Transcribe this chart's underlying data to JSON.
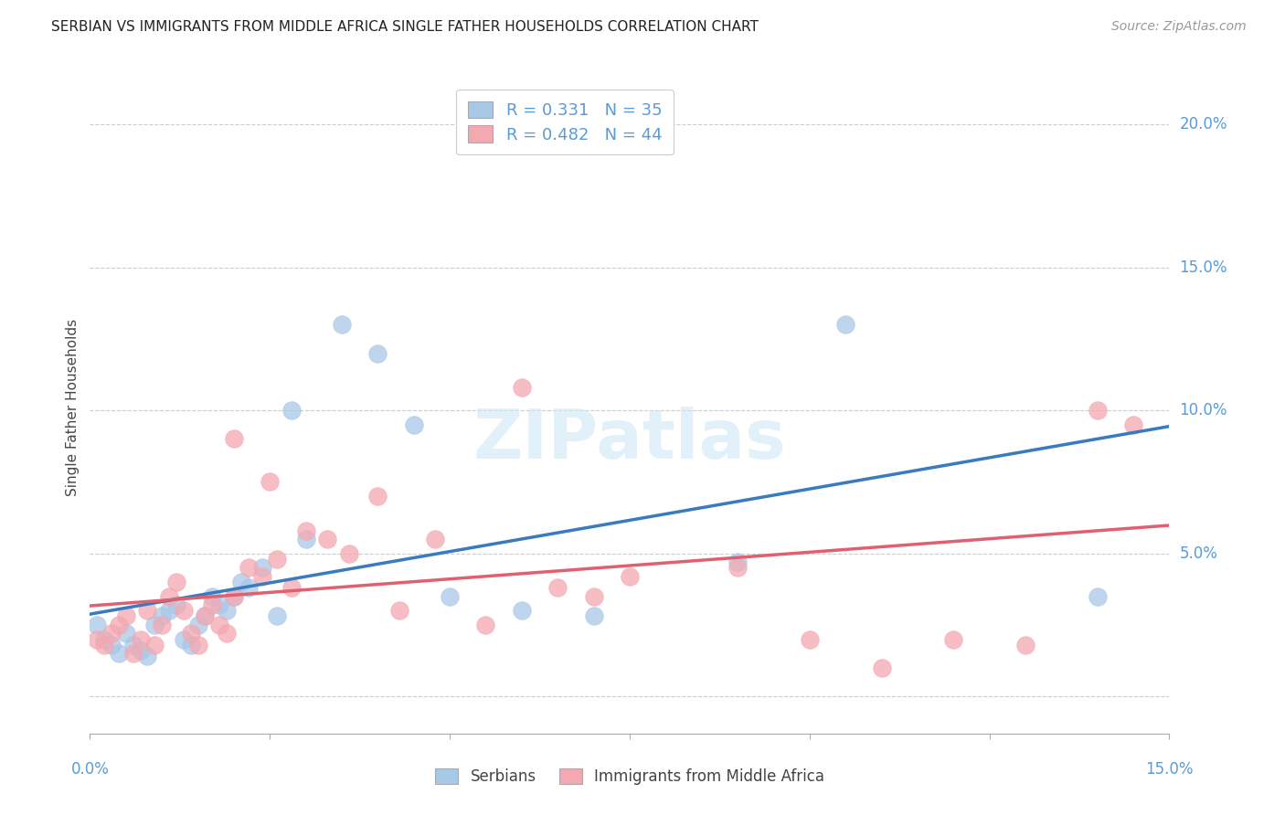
{
  "title": "SERBIAN VS IMMIGRANTS FROM MIDDLE AFRICA SINGLE FATHER HOUSEHOLDS CORRELATION CHART",
  "source": "Source: ZipAtlas.com",
  "ylabel": "Single Father Households",
  "xmin": 0.0,
  "xmax": 0.15,
  "ymin": -0.013,
  "ymax": 0.215,
  "blue_color": "#a8c8e8",
  "pink_color": "#f4a8b0",
  "line_blue": "#3a7abf",
  "line_pink": "#e06070",
  "axis_color": "#5b9bd5",
  "watermark_color": "#d0e8f5",
  "serbians_x": [
    0.001,
    0.002,
    0.003,
    0.004,
    0.005,
    0.006,
    0.007,
    0.008,
    0.009,
    0.01,
    0.011,
    0.012,
    0.013,
    0.014,
    0.015,
    0.016,
    0.017,
    0.018,
    0.019,
    0.02,
    0.021,
    0.022,
    0.024,
    0.026,
    0.028,
    0.03,
    0.035,
    0.04,
    0.045,
    0.05,
    0.06,
    0.07,
    0.09,
    0.105,
    0.14
  ],
  "serbians_y": [
    0.025,
    0.02,
    0.018,
    0.015,
    0.022,
    0.018,
    0.016,
    0.014,
    0.025,
    0.028,
    0.03,
    0.032,
    0.02,
    0.018,
    0.025,
    0.028,
    0.035,
    0.032,
    0.03,
    0.035,
    0.04,
    0.038,
    0.045,
    0.028,
    0.1,
    0.055,
    0.13,
    0.12,
    0.095,
    0.035,
    0.03,
    0.028,
    0.047,
    0.13,
    0.035
  ],
  "immigrants_x": [
    0.001,
    0.002,
    0.003,
    0.004,
    0.005,
    0.006,
    0.007,
    0.008,
    0.009,
    0.01,
    0.011,
    0.012,
    0.013,
    0.014,
    0.015,
    0.016,
    0.017,
    0.018,
    0.019,
    0.02,
    0.022,
    0.024,
    0.026,
    0.028,
    0.03,
    0.033,
    0.036,
    0.04,
    0.043,
    0.048,
    0.055,
    0.065,
    0.075,
    0.09,
    0.1,
    0.11,
    0.12,
    0.13,
    0.14,
    0.145,
    0.02,
    0.025,
    0.06,
    0.07
  ],
  "immigrants_y": [
    0.02,
    0.018,
    0.022,
    0.025,
    0.028,
    0.015,
    0.02,
    0.03,
    0.018,
    0.025,
    0.035,
    0.04,
    0.03,
    0.022,
    0.018,
    0.028,
    0.032,
    0.025,
    0.022,
    0.035,
    0.045,
    0.042,
    0.048,
    0.038,
    0.058,
    0.055,
    0.05,
    0.07,
    0.03,
    0.055,
    0.025,
    0.038,
    0.042,
    0.045,
    0.02,
    0.01,
    0.02,
    0.018,
    0.1,
    0.095,
    0.09,
    0.075,
    0.108,
    0.035
  ]
}
